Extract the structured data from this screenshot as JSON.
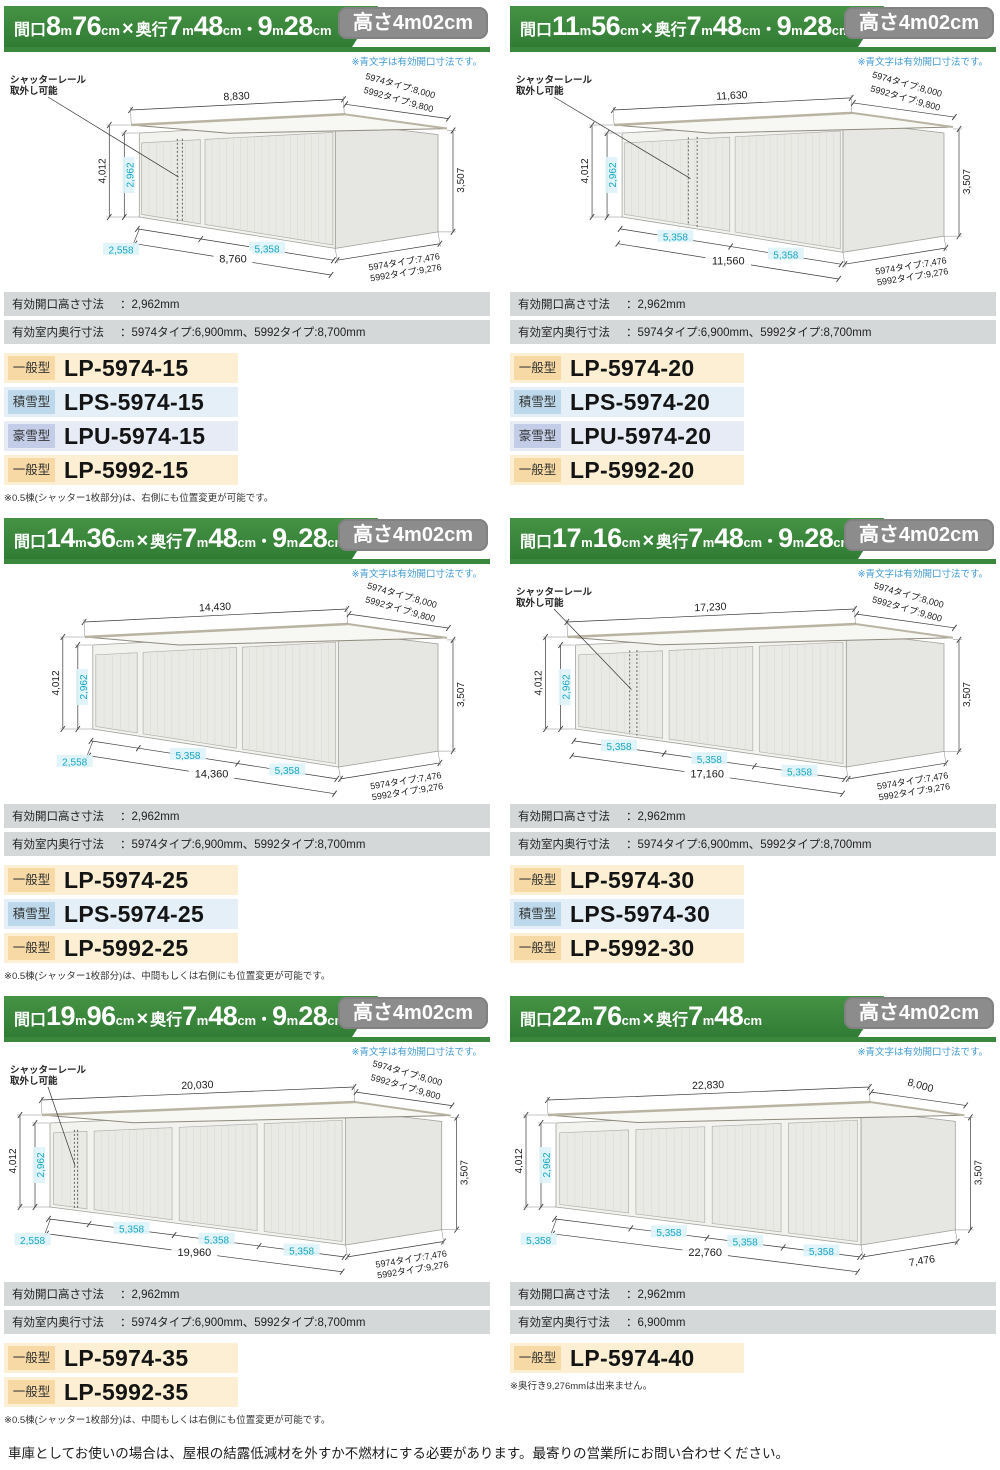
{
  "page": {
    "blue_note": "※青文字は有効開口寸法です。",
    "footer": "車庫としてお使いの場合は、屋根の結露低減材を外すか不燃材にする必要があります。最寄りの営業所にお問い合わせください。"
  },
  "colors": {
    "header_green": "#3c8a3e",
    "badge_gray": "#8c8c8c",
    "note_blue": "#3f9ad2",
    "dim_cyan": "#19a8c4",
    "spec_bar_gray": "#d5d8d9",
    "general_tag": "#f6d9a4",
    "general_row": "#fcefd4",
    "sekisetsu_tag": "#bdd8ea",
    "sekisetsu_row": "#e4eff7",
    "gousetsu_tag": "#c3cde7",
    "gousetsu_row": "#e6ebf5"
  },
  "panels": [
    {
      "header": {
        "segments": [
          {
            "t": "間口",
            "k": "label"
          },
          {
            "t": "8",
            "k": "num"
          },
          {
            "t": "m",
            "k": "unit"
          },
          {
            "t": "76",
            "k": "num"
          },
          {
            "t": "cm",
            "k": "unit"
          },
          {
            "t": "×",
            "k": "x"
          },
          {
            "t": "奥行",
            "k": "label"
          },
          {
            "t": "7",
            "k": "num"
          },
          {
            "t": "m",
            "k": "unit"
          },
          {
            "t": "48",
            "k": "num"
          },
          {
            "t": "cm",
            "k": "unit"
          },
          {
            "t": "・",
            "k": "dot"
          },
          {
            "t": "9",
            "k": "num"
          },
          {
            "t": "m",
            "k": "unit"
          },
          {
            "t": "28",
            "k": "num"
          },
          {
            "t": "cm",
            "k": "unit"
          }
        ],
        "height_badge": "高さ4m02cm"
      },
      "drawing": {
        "shutter_label": [
          "シャッターレール",
          "取外し可能"
        ],
        "shutter": true,
        "roof_w": "8,830",
        "roof_depth": [
          "5974タイプ:8,000",
          "5992タイプ:9,800"
        ],
        "left_total": "4,012",
        "left_open": "2,962",
        "right_h": "3,507",
        "lead": "2,558",
        "line_labels": [
          "5,358"
        ],
        "total": "8,760",
        "bottom_depth": [
          "5974タイプ:7,476",
          "5992タイプ:9,276"
        ]
      },
      "specs": [
        {
          "label": "有効開口高さ寸法",
          "value": "：2,962mm"
        },
        {
          "label": "有効室内奥行寸法",
          "value": "：5974タイプ:6,900mm、5992タイプ:8,700mm"
        }
      ],
      "models": [
        {
          "type": "一般型",
          "code": "LP-5974-15",
          "style": "general"
        },
        {
          "type": "積雪型",
          "code": "LPS-5974-15",
          "style": "sekisetsu"
        },
        {
          "type": "豪雪型",
          "code": "LPU-5974-15",
          "style": "gousetsu"
        },
        {
          "type": "一般型",
          "code": "LP-5992-15",
          "style": "general"
        }
      ],
      "footnote": "※0.5棟(シャッター1枚部分)は、右側にも位置変更が可能です。"
    },
    {
      "header": {
        "segments": [
          {
            "t": "間口",
            "k": "label"
          },
          {
            "t": "11",
            "k": "num"
          },
          {
            "t": "m",
            "k": "unit"
          },
          {
            "t": "56",
            "k": "num"
          },
          {
            "t": "cm",
            "k": "unit"
          },
          {
            "t": "×",
            "k": "x"
          },
          {
            "t": "奥行",
            "k": "label"
          },
          {
            "t": "7",
            "k": "num"
          },
          {
            "t": "m",
            "k": "unit"
          },
          {
            "t": "48",
            "k": "num"
          },
          {
            "t": "cm",
            "k": "unit"
          },
          {
            "t": "・",
            "k": "dot"
          },
          {
            "t": "9",
            "k": "num"
          },
          {
            "t": "m",
            "k": "unit"
          },
          {
            "t": "28",
            "k": "num"
          },
          {
            "t": "cm",
            "k": "unit"
          }
        ],
        "height_badge": "高さ4m02cm"
      },
      "drawing": {
        "shutter_label": [
          "シャッターレール",
          "取外し可能"
        ],
        "shutter": true,
        "roof_w": "11,630",
        "roof_depth": [
          "5974タイプ:8,000",
          "5992タイプ:9,800"
        ],
        "left_total": "4,012",
        "left_open": "2,962",
        "right_h": "3,507",
        "lead": null,
        "line_labels": [
          "5,358",
          "5,358"
        ],
        "total": "11,560",
        "bottom_depth": [
          "5974タイプ:7,476",
          "5992タイプ:9,276"
        ]
      },
      "specs": [
        {
          "label": "有効開口高さ寸法",
          "value": "：2,962mm"
        },
        {
          "label": "有効室内奥行寸法",
          "value": "：5974タイプ:6,900mm、5992タイプ:8,700mm"
        }
      ],
      "models": [
        {
          "type": "一般型",
          "code": "LP-5974-20",
          "style": "general"
        },
        {
          "type": "積雪型",
          "code": "LPS-5974-20",
          "style": "sekisetsu"
        },
        {
          "type": "豪雪型",
          "code": "LPU-5974-20",
          "style": "gousetsu"
        },
        {
          "type": "一般型",
          "code": "LP-5992-20",
          "style": "general"
        }
      ],
      "footnote": ""
    },
    {
      "header": {
        "segments": [
          {
            "t": "間口",
            "k": "label"
          },
          {
            "t": "14",
            "k": "num"
          },
          {
            "t": "m",
            "k": "unit"
          },
          {
            "t": "36",
            "k": "num"
          },
          {
            "t": "cm",
            "k": "unit"
          },
          {
            "t": "×",
            "k": "x"
          },
          {
            "t": "奥行",
            "k": "label"
          },
          {
            "t": "7",
            "k": "num"
          },
          {
            "t": "m",
            "k": "unit"
          },
          {
            "t": "48",
            "k": "num"
          },
          {
            "t": "cm",
            "k": "unit"
          },
          {
            "t": "・",
            "k": "dot"
          },
          {
            "t": "9",
            "k": "num"
          },
          {
            "t": "m",
            "k": "unit"
          },
          {
            "t": "28",
            "k": "num"
          },
          {
            "t": "cm",
            "k": "unit"
          }
        ],
        "height_badge": "高さ4m02cm"
      },
      "drawing": {
        "shutter_label": null,
        "shutter": false,
        "roof_w": "14,430",
        "roof_depth": [
          "5974タイプ:8,000",
          "5992タイプ:9,800"
        ],
        "left_total": "4,012",
        "left_open": "2,962",
        "right_h": "3,507",
        "lead": "2,558",
        "line_labels": [
          "5,358",
          "5,358"
        ],
        "total": "14,360",
        "bottom_depth": [
          "5974タイプ:7,476",
          "5992タイプ:9,276"
        ]
      },
      "specs": [
        {
          "label": "有効開口高さ寸法",
          "value": "：2,962mm"
        },
        {
          "label": "有効室内奥行寸法",
          "value": "：5974タイプ:6,900mm、5992タイプ:8,700mm"
        }
      ],
      "models": [
        {
          "type": "一般型",
          "code": "LP-5974-25",
          "style": "general"
        },
        {
          "type": "積雪型",
          "code": "LPS-5974-25",
          "style": "sekisetsu"
        },
        {
          "type": "一般型",
          "code": "LP-5992-25",
          "style": "general"
        }
      ],
      "footnote": "※0.5棟(シャッター1枚部分)は、中間もしくは右側にも位置変更が可能です。"
    },
    {
      "header": {
        "segments": [
          {
            "t": "間口",
            "k": "label"
          },
          {
            "t": "17",
            "k": "num"
          },
          {
            "t": "m",
            "k": "unit"
          },
          {
            "t": "16",
            "k": "num"
          },
          {
            "t": "cm",
            "k": "unit"
          },
          {
            "t": "×",
            "k": "x"
          },
          {
            "t": "奥行",
            "k": "label"
          },
          {
            "t": "7",
            "k": "num"
          },
          {
            "t": "m",
            "k": "unit"
          },
          {
            "t": "48",
            "k": "num"
          },
          {
            "t": "cm",
            "k": "unit"
          },
          {
            "t": "・",
            "k": "dot"
          },
          {
            "t": "9",
            "k": "num"
          },
          {
            "t": "m",
            "k": "unit"
          },
          {
            "t": "28",
            "k": "num"
          },
          {
            "t": "cm",
            "k": "unit"
          }
        ],
        "height_badge": "高さ4m02cm"
      },
      "drawing": {
        "shutter_label": [
          "シャッターレール",
          "取外し可能"
        ],
        "shutter": true,
        "roof_w": "17,230",
        "roof_depth": [
          "5974タイプ:8,000",
          "5992タイプ:9,800"
        ],
        "left_total": "4,012",
        "left_open": "2,962",
        "right_h": "3,507",
        "lead": null,
        "line_labels": [
          "5,358",
          "5,358",
          "5,358"
        ],
        "total": "17,160",
        "bottom_depth": [
          "5974タイプ:7,476",
          "5992タイプ:9,276"
        ]
      },
      "specs": [
        {
          "label": "有効開口高さ寸法",
          "value": "：2,962mm"
        },
        {
          "label": "有効室内奥行寸法",
          "value": "：5974タイプ:6,900mm、5992タイプ:8,700mm"
        }
      ],
      "models": [
        {
          "type": "一般型",
          "code": "LP-5974-30",
          "style": "general"
        },
        {
          "type": "積雪型",
          "code": "LPS-5974-30",
          "style": "sekisetsu"
        },
        {
          "type": "一般型",
          "code": "LP-5992-30",
          "style": "general"
        }
      ],
      "footnote": ""
    },
    {
      "header": {
        "segments": [
          {
            "t": "間口",
            "k": "label"
          },
          {
            "t": "19",
            "k": "num"
          },
          {
            "t": "m",
            "k": "unit"
          },
          {
            "t": "96",
            "k": "num"
          },
          {
            "t": "cm",
            "k": "unit"
          },
          {
            "t": "×",
            "k": "x"
          },
          {
            "t": "奥行",
            "k": "label"
          },
          {
            "t": "7",
            "k": "num"
          },
          {
            "t": "m",
            "k": "unit"
          },
          {
            "t": "48",
            "k": "num"
          },
          {
            "t": "cm",
            "k": "unit"
          },
          {
            "t": "・",
            "k": "dot"
          },
          {
            "t": "9",
            "k": "num"
          },
          {
            "t": "m",
            "k": "unit"
          },
          {
            "t": "28",
            "k": "num"
          },
          {
            "t": "cm",
            "k": "unit"
          }
        ],
        "height_badge": "高さ4m02cm"
      },
      "drawing": {
        "shutter_label": [
          "シャッターレール",
          "取外し可能"
        ],
        "shutter": true,
        "roof_w": "20,030",
        "roof_depth": [
          "5974タイプ:8,000",
          "5992タイプ:9,800"
        ],
        "left_total": "4,012",
        "left_open": "2,962",
        "right_h": "3,507",
        "lead": "2,558",
        "line_labels": [
          "5,358",
          "5,358",
          "5,358"
        ],
        "total": "19,960",
        "bottom_depth": [
          "5974タイプ:7,476",
          "5992タイプ:9,276"
        ]
      },
      "specs": [
        {
          "label": "有効開口高さ寸法",
          "value": "：2,962mm"
        },
        {
          "label": "有効室内奥行寸法",
          "value": "：5974タイプ:6,900mm、5992タイプ:8,700mm"
        }
      ],
      "models": [
        {
          "type": "一般型",
          "code": "LP-5974-35",
          "style": "general"
        },
        {
          "type": "一般型",
          "code": "LP-5992-35",
          "style": "general"
        }
      ],
      "footnote": "※0.5棟(シャッター1枚部分)は、中間もしくは右側にも位置変更が可能です。"
    },
    {
      "header": {
        "segments": [
          {
            "t": "間口",
            "k": "label"
          },
          {
            "t": "22",
            "k": "num"
          },
          {
            "t": "m",
            "k": "unit"
          },
          {
            "t": "76",
            "k": "num"
          },
          {
            "t": "cm",
            "k": "unit"
          },
          {
            "t": "×",
            "k": "x"
          },
          {
            "t": "奥行",
            "k": "label"
          },
          {
            "t": "7",
            "k": "num"
          },
          {
            "t": "m",
            "k": "unit"
          },
          {
            "t": "48",
            "k": "num"
          },
          {
            "t": "cm",
            "k": "unit"
          }
        ],
        "height_badge": "高さ4m02cm"
      },
      "drawing": {
        "shutter_label": null,
        "shutter": false,
        "roof_w": "22,830",
        "roof_depth": [
          "8,000"
        ],
        "left_total": "4,012",
        "left_open": "2,962",
        "right_h": "3,507",
        "lead": "5,358",
        "line_labels": [
          "5,358",
          "5,358",
          "5,358"
        ],
        "total": "22,760",
        "bottom_depth": [
          "7,476"
        ]
      },
      "specs": [
        {
          "label": "有効開口高さ寸法",
          "value": "：2,962mm"
        },
        {
          "label": "有効室内奥行寸法",
          "value": "：6,900mm"
        }
      ],
      "models": [
        {
          "type": "一般型",
          "code": "LP-5974-40",
          "style": "general"
        }
      ],
      "footnote": "※奥行き9,276mmは出来ません。"
    }
  ]
}
